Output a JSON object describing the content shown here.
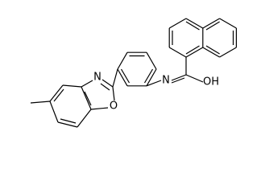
{
  "atoms": [
    {
      "label": "N"
    },
    {
      "label": "O"
    },
    {
      "label": "N"
    },
    {
      "label": "OH"
    }
  ]
}
